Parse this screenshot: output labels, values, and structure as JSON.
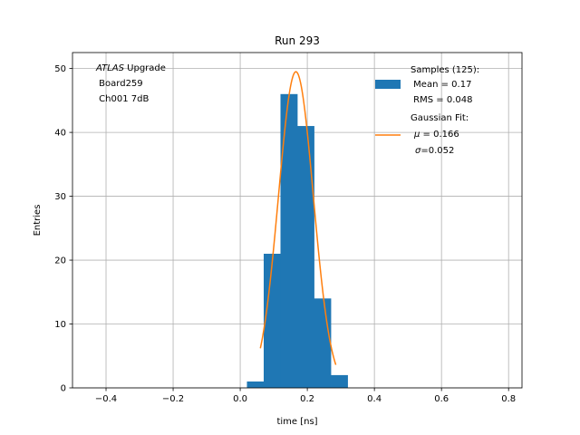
{
  "chart_data": {
    "type": "bar",
    "title": "Run 293",
    "xlabel": "time [ns]",
    "ylabel": "Entries",
    "xlim": [
      -0.5,
      0.84
    ],
    "ylim": [
      0,
      52.5
    ],
    "grid": true,
    "xticks": [
      -0.4,
      -0.2,
      0.0,
      0.2,
      0.4,
      0.6,
      0.8
    ],
    "xtick_labels": [
      "−0.4",
      "−0.2",
      "0.0",
      "0.2",
      "0.4",
      "0.6",
      "0.8"
    ],
    "yticks": [
      0,
      10,
      20,
      30,
      40,
      50
    ],
    "ytick_labels": [
      "0",
      "10",
      "20",
      "30",
      "40",
      "50"
    ],
    "histogram": {
      "bin_edges": [
        0.02,
        0.07,
        0.12,
        0.17,
        0.22,
        0.27,
        0.32
      ],
      "counts": [
        1,
        21,
        46,
        41,
        14,
        2
      ],
      "color": "#1f77b4"
    },
    "fit": {
      "amplitude": 49.5,
      "mu": 0.166,
      "sigma": 0.052,
      "x_range": [
        0.06,
        0.285
      ],
      "color": "#ff7f0e"
    },
    "annotation": {
      "atlas_italic": "ATLAS",
      "atlas_rest": " Upgrade",
      "line2": " Board259",
      "line3": " Ch001 7dB"
    },
    "legend": {
      "placement": "top-right",
      "samples_title": "Samples (125):",
      "samples_mean": " Mean = 0.17",
      "samples_rms": " RMS = 0.048",
      "fit_title": "Gaussian Fit:",
      "fit_mu_symbol": "μ",
      "fit_mu_value": " = 0.166",
      "fit_sigma_symbol": "σ",
      "fit_sigma_value": "=0.052"
    }
  }
}
